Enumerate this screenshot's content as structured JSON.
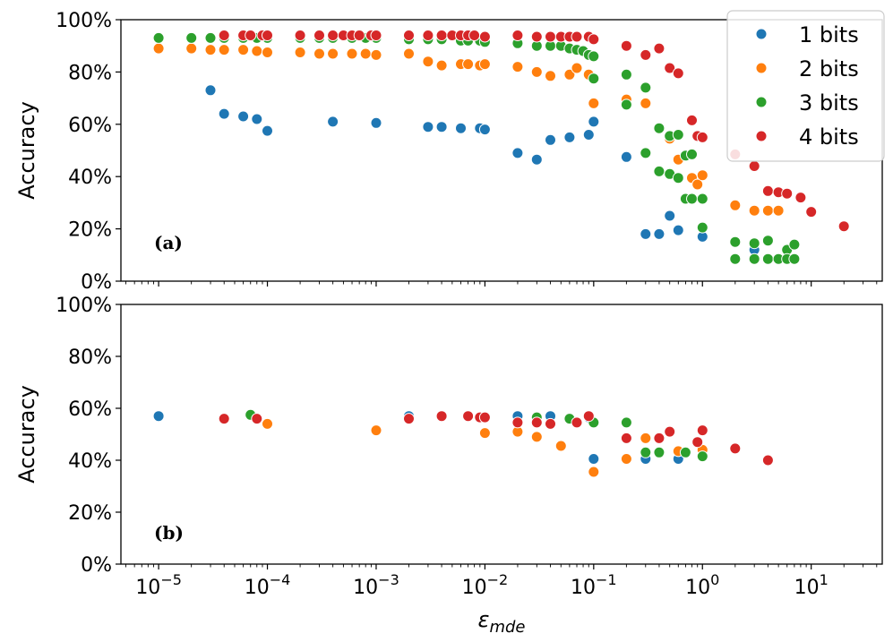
{
  "chart_data": [
    {
      "id": "a",
      "type": "scatter",
      "panel_label": "(a)",
      "ylabel": "Accuracy",
      "xscale": "log",
      "xlim": [
        4.5e-06,
        45
      ],
      "ylim": [
        0,
        100
      ],
      "yticks": [
        0,
        20,
        40,
        60,
        80,
        100
      ],
      "ytick_labels": [
        "0%",
        "20%",
        "40%",
        "60%",
        "80%",
        "100%"
      ],
      "legend": {
        "placement": "top-right",
        "entries": [
          {
            "label": "1 bits",
            "color": "#1f77b4"
          },
          {
            "label": "2 bits",
            "color": "#ff7f0e"
          },
          {
            "label": "3 bits",
            "color": "#2ca02c"
          },
          {
            "label": "4 bits",
            "color": "#d62728"
          }
        ]
      },
      "series": [
        {
          "name": "1 bits",
          "color": "#1f77b4",
          "points": [
            [
              3e-05,
              73
            ],
            [
              4e-05,
              64
            ],
            [
              6e-05,
              63
            ],
            [
              8e-05,
              62
            ],
            [
              0.0001,
              57.5
            ],
            [
              0.0004,
              61
            ],
            [
              0.001,
              60.5
            ],
            [
              0.003,
              59
            ],
            [
              0.004,
              59
            ],
            [
              0.006,
              58.5
            ],
            [
              0.009,
              58.5
            ],
            [
              0.01,
              58
            ],
            [
              0.02,
              49
            ],
            [
              0.03,
              46.5
            ],
            [
              0.04,
              54
            ],
            [
              0.06,
              55
            ],
            [
              0.09,
              56
            ],
            [
              0.1,
              61
            ],
            [
              0.2,
              47.5
            ],
            [
              0.3,
              18
            ],
            [
              0.4,
              18
            ],
            [
              0.5,
              25
            ],
            [
              0.6,
              19.5
            ],
            [
              1.0,
              17
            ],
            [
              3.0,
              12
            ]
          ]
        },
        {
          "name": "2 bits",
          "color": "#ff7f0e",
          "points": [
            [
              1e-05,
              89
            ],
            [
              2e-05,
              89
            ],
            [
              3e-05,
              88.5
            ],
            [
              4e-05,
              88.5
            ],
            [
              6e-05,
              88.5
            ],
            [
              8e-05,
              88
            ],
            [
              0.0001,
              87.5
            ],
            [
              0.0002,
              87.5
            ],
            [
              0.0003,
              87
            ],
            [
              0.0004,
              87
            ],
            [
              0.0006,
              87
            ],
            [
              0.0008,
              87
            ],
            [
              0.001,
              86.5
            ],
            [
              0.002,
              87
            ],
            [
              0.003,
              84
            ],
            [
              0.004,
              82.5
            ],
            [
              0.006,
              83
            ],
            [
              0.007,
              83
            ],
            [
              0.009,
              82.5
            ],
            [
              0.01,
              83
            ],
            [
              0.02,
              82
            ],
            [
              0.03,
              80
            ],
            [
              0.04,
              78.5
            ],
            [
              0.06,
              79
            ],
            [
              0.07,
              81.5
            ],
            [
              0.09,
              79
            ],
            [
              0.1,
              68
            ],
            [
              0.2,
              69.5
            ],
            [
              0.3,
              68
            ],
            [
              0.5,
              54.5
            ],
            [
              0.6,
              46.5
            ],
            [
              0.8,
              39.5
            ],
            [
              0.9,
              37
            ],
            [
              1.0,
              40.5
            ],
            [
              2.0,
              29
            ],
            [
              3.0,
              27
            ],
            [
              4.0,
              27
            ],
            [
              5.0,
              27
            ]
          ]
        },
        {
          "name": "3 bits",
          "color": "#2ca02c",
          "points": [
            [
              1e-05,
              93
            ],
            [
              2e-05,
              93
            ],
            [
              3e-05,
              93
            ],
            [
              4e-05,
              93
            ],
            [
              6e-05,
              93
            ],
            [
              8e-05,
              93
            ],
            [
              0.0001,
              93
            ],
            [
              0.0002,
              93
            ],
            [
              0.0003,
              93
            ],
            [
              0.0004,
              93
            ],
            [
              0.0006,
              93
            ],
            [
              0.0008,
              93
            ],
            [
              0.001,
              93
            ],
            [
              0.002,
              92.5
            ],
            [
              0.003,
              92.5
            ],
            [
              0.004,
              92.5
            ],
            [
              0.006,
              92
            ],
            [
              0.007,
              92
            ],
            [
              0.009,
              92
            ],
            [
              0.01,
              91.5
            ],
            [
              0.02,
              91
            ],
            [
              0.03,
              90
            ],
            [
              0.04,
              90
            ],
            [
              0.05,
              90
            ],
            [
              0.06,
              89
            ],
            [
              0.07,
              88.5
            ],
            [
              0.08,
              88
            ],
            [
              0.09,
              86.5
            ],
            [
              0.1,
              86
            ],
            [
              0.1,
              77.5
            ],
            [
              0.2,
              79
            ],
            [
              0.2,
              67.5
            ],
            [
              0.3,
              74
            ],
            [
              0.3,
              49
            ],
            [
              0.4,
              58.5
            ],
            [
              0.4,
              42
            ],
            [
              0.5,
              55.5
            ],
            [
              0.5,
              41
            ],
            [
              0.6,
              56
            ],
            [
              0.6,
              39.5
            ],
            [
              0.7,
              48
            ],
            [
              0.7,
              31.5
            ],
            [
              0.8,
              48.5
            ],
            [
              0.8,
              31.5
            ],
            [
              1.0,
              31.5
            ],
            [
              1.0,
              20.5
            ],
            [
              2.0,
              15
            ],
            [
              2.0,
              8.5
            ],
            [
              3.0,
              14.5
            ],
            [
              3.0,
              8.5
            ],
            [
              4.0,
              15.5
            ],
            [
              4.0,
              8.5
            ],
            [
              5.0,
              8.5
            ],
            [
              6.0,
              12
            ],
            [
              6.0,
              8.5
            ],
            [
              7.0,
              14
            ],
            [
              7.0,
              8.5
            ]
          ]
        },
        {
          "name": "4 bits",
          "color": "#d62728",
          "points": [
            [
              4e-05,
              94
            ],
            [
              6e-05,
              94
            ],
            [
              7e-05,
              94
            ],
            [
              9e-05,
              94
            ],
            [
              0.0001,
              94
            ],
            [
              0.0002,
              94
            ],
            [
              0.0003,
              94
            ],
            [
              0.0004,
              94
            ],
            [
              0.0005,
              94
            ],
            [
              0.0006,
              94
            ],
            [
              0.0007,
              94
            ],
            [
              0.0009,
              94
            ],
            [
              0.001,
              94
            ],
            [
              0.002,
              94
            ],
            [
              0.003,
              94
            ],
            [
              0.004,
              94
            ],
            [
              0.005,
              94
            ],
            [
              0.006,
              94
            ],
            [
              0.007,
              94
            ],
            [
              0.008,
              94
            ],
            [
              0.01,
              93.5
            ],
            [
              0.02,
              94
            ],
            [
              0.03,
              93.5
            ],
            [
              0.04,
              93.5
            ],
            [
              0.05,
              93.5
            ],
            [
              0.06,
              93.5
            ],
            [
              0.07,
              93.5
            ],
            [
              0.09,
              93.5
            ],
            [
              0.1,
              92.5
            ],
            [
              0.2,
              90
            ],
            [
              0.3,
              86.5
            ],
            [
              0.4,
              89
            ],
            [
              0.5,
              81.5
            ],
            [
              0.6,
              79.5
            ],
            [
              0.8,
              61.5
            ],
            [
              0.9,
              55.5
            ],
            [
              1.0,
              55
            ],
            [
              2.0,
              48.5
            ],
            [
              3.0,
              44
            ],
            [
              4.0,
              34.5
            ],
            [
              5.0,
              34
            ],
            [
              6.0,
              33.5
            ],
            [
              8.0,
              32
            ],
            [
              10.0,
              26.5
            ],
            [
              20.0,
              21
            ]
          ]
        }
      ]
    },
    {
      "id": "b",
      "type": "scatter",
      "panel_label": "(b)",
      "ylabel": "Accuracy",
      "xlabel": "ε",
      "xlabel_subscript": "mde",
      "xscale": "log",
      "xlim": [
        4.5e-06,
        45
      ],
      "ylim": [
        0,
        100
      ],
      "yticks": [
        0,
        20,
        40,
        60,
        80,
        100
      ],
      "ytick_labels": [
        "0%",
        "20%",
        "40%",
        "60%",
        "80%",
        "100%"
      ],
      "xticks": [
        1e-05,
        0.0001,
        0.001,
        0.01,
        0.1,
        1,
        10
      ],
      "xtick_labels": [
        {
          "base": "10",
          "exp": "−5"
        },
        {
          "base": "10",
          "exp": "−4"
        },
        {
          "base": "10",
          "exp": "−3"
        },
        {
          "base": "10",
          "exp": "−2"
        },
        {
          "base": "10",
          "exp": "−1"
        },
        {
          "base": "10",
          "exp": "0"
        },
        {
          "base": "10",
          "exp": "1"
        }
      ],
      "series": [
        {
          "name": "1 bits",
          "color": "#1f77b4",
          "points": [
            [
              1e-05,
              57
            ],
            [
              0.002,
              57
            ],
            [
              0.02,
              57
            ],
            [
              0.04,
              57
            ],
            [
              0.09,
              56.5
            ],
            [
              0.1,
              40.5
            ],
            [
              0.3,
              40.5
            ],
            [
              0.6,
              40.5
            ]
          ]
        },
        {
          "name": "2 bits",
          "color": "#ff7f0e",
          "points": [
            [
              0.0001,
              54
            ],
            [
              0.001,
              51.5
            ],
            [
              0.01,
              50.5
            ],
            [
              0.02,
              51
            ],
            [
              0.03,
              49
            ],
            [
              0.05,
              45.5
            ],
            [
              0.1,
              35.5
            ],
            [
              0.2,
              40.5
            ],
            [
              0.3,
              48.5
            ],
            [
              0.6,
              43.5
            ],
            [
              1.0,
              44
            ]
          ]
        },
        {
          "name": "3 bits",
          "color": "#2ca02c",
          "points": [
            [
              7e-05,
              57.5
            ],
            [
              0.03,
              56.5
            ],
            [
              0.06,
              56
            ],
            [
              0.1,
              54.5
            ],
            [
              0.2,
              54.5
            ],
            [
              0.3,
              43
            ],
            [
              0.4,
              43
            ],
            [
              0.7,
              43
            ],
            [
              1.0,
              41.5
            ]
          ]
        },
        {
          "name": "4 bits",
          "color": "#d62728",
          "points": [
            [
              4e-05,
              56
            ],
            [
              8e-05,
              56
            ],
            [
              0.002,
              56
            ],
            [
              0.004,
              57
            ],
            [
              0.007,
              57
            ],
            [
              0.009,
              56.5
            ],
            [
              0.01,
              56.5
            ],
            [
              0.02,
              54.5
            ],
            [
              0.03,
              54.5
            ],
            [
              0.04,
              54
            ],
            [
              0.07,
              54.5
            ],
            [
              0.09,
              57
            ],
            [
              0.2,
              48.5
            ],
            [
              0.4,
              48.5
            ],
            [
              0.5,
              51
            ],
            [
              0.9,
              47
            ],
            [
              1.0,
              51.5
            ],
            [
              2.0,
              44.5
            ],
            [
              4.0,
              40
            ]
          ]
        }
      ]
    }
  ]
}
